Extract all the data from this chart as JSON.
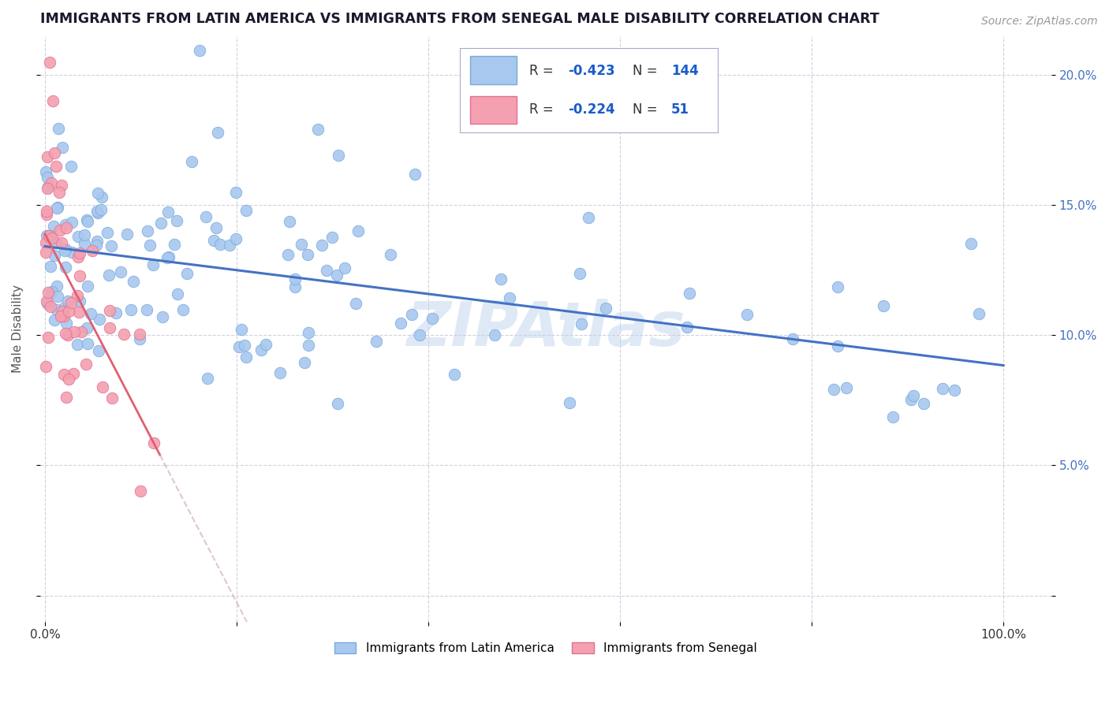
{
  "title": "IMMIGRANTS FROM LATIN AMERICA VS IMMIGRANTS FROM SENEGAL MALE DISABILITY CORRELATION CHART",
  "source": "Source: ZipAtlas.com",
  "ylabel": "Male Disability",
  "xlim": [
    -0.005,
    1.05
  ],
  "ylim": [
    -0.01,
    0.215
  ],
  "legend_label1": "Immigrants from Latin America",
  "legend_label2": "Immigrants from Senegal",
  "r1": "-0.423",
  "n1": "144",
  "r2": "-0.224",
  "n2": "51",
  "scatter_color1": "#a8c8f0",
  "scatter_edge1": "#7aaad8",
  "scatter_color2": "#f4a0b0",
  "scatter_edge2": "#e07090",
  "line_color1": "#4472c4",
  "line_color2": "#e06070",
  "line_color2_dashed": "#d0b0b8",
  "watermark": "ZIPAtlas",
  "background_color": "#ffffff",
  "grid_color": "#ccccdd",
  "title_color": "#1a1a2e",
  "source_color": "#999999",
  "legend_text_color": "#333333",
  "legend_value_color": "#1a5cc8",
  "seed": 42
}
